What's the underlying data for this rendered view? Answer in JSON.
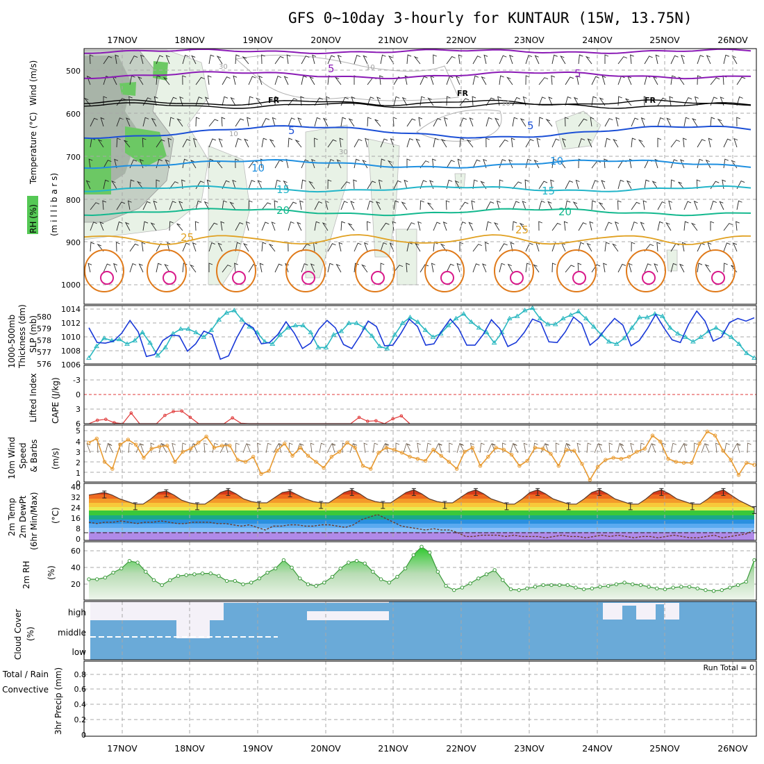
{
  "title": "GFS 0~10day 3-hourly for KUNTAUR (15W, 13.75N)",
  "colors": {
    "purple": "#8a1ab5",
    "black": "#000000",
    "blue": "#1b4fd6",
    "lightblue": "#1e8fe0",
    "cyan": "#22b5c9",
    "teal": "#13b88e",
    "gold": "#e0a020",
    "orange": "#e07a1a",
    "magenta": "#d81a8a",
    "slp": "#1838d8",
    "thick": "#2ab8c0",
    "li": "#e03a3a",
    "wind10": "#e89a30",
    "rh": "#3a9a3a"
  },
  "dates": [
    "17NOV",
    "18NOV",
    "19NOV",
    "20NOV",
    "21NOV",
    "22NOV",
    "23NOV",
    "24NOV",
    "25NOV",
    "26NOV"
  ],
  "run_total": "Run Total = 0",
  "panels": {
    "upper": {
      "labels": [
        "Wind (m/s)",
        "Temperature (°C)",
        "RH (%)",
        "(m i l l i b a r s)"
      ],
      "ticks": [
        "500",
        "600",
        "700",
        "800",
        "900",
        "1000"
      ],
      "contour_labels": {
        "t5a": "5",
        "t5b": "5",
        "fr1": "FR",
        "fr2": "FR",
        "fr3": "FR",
        "t5c": "5",
        "t5d": "5",
        "t10a": "10",
        "t10b": "10",
        "t15a": "15",
        "t15b": "15",
        "t20a": "20",
        "t20b": "20",
        "t25a": "25",
        "t25b": "25",
        "rh30a": "30",
        "rh10a": "10",
        "rh30b": "30",
        "rh10b": "10",
        "rh10c": "10"
      }
    },
    "slp": {
      "labels": [
        "1000-500mb",
        "Thickness (dm)",
        "SLP (mb)"
      ],
      "left_ticks": [
        "580",
        "579",
        "578",
        "577",
        "576"
      ],
      "right_ticks": [
        "1014",
        "1012",
        "1010",
        "1008",
        "1006"
      ]
    },
    "li": {
      "labels": [
        "Lifted Index",
        "CAPE (J/kg)"
      ],
      "ticks": [
        "-3",
        "0",
        "3",
        "6"
      ]
    },
    "wind": {
      "labels": [
        "10m Wind",
        "Speed",
        "& Barbs",
        "(m/s)"
      ],
      "ticks": [
        "5",
        "4",
        "3",
        "2",
        "1",
        "0"
      ]
    },
    "temp": {
      "labels": [
        "2m Temp",
        "2m DewPt",
        "(6hr Min/Max)",
        "(°C)"
      ],
      "ticks": [
        "40",
        "32",
        "24",
        "16",
        "8",
        "0"
      ]
    },
    "rh2m": {
      "labels": [
        "2m RH",
        "(%)"
      ],
      "ticks": [
        "60",
        "40",
        "20"
      ]
    },
    "cloud": {
      "labels": [
        "Cloud Cover",
        "(%)"
      ],
      "levels": [
        "high",
        "middle",
        "low"
      ]
    },
    "precip": {
      "labels": [
        "Total / Rain",
        "Convective",
        "3hr Precip (mm)"
      ],
      "ticks": [
        "0.8",
        "0.6",
        "0.4",
        "0.2",
        "0"
      ]
    }
  },
  "chart_data": [
    {
      "type": "line",
      "title": "SLP (mb)",
      "ylim": [
        1006,
        1014
      ],
      "series": [
        {
          "name": "SLP (mb)",
          "values": [
            1011.2,
            1009.0,
            1008.9,
            1009.2,
            1010.4,
            1012.3,
            1010.6,
            1006.9,
            1007.2,
            1009.3,
            1010.1,
            1010.0,
            1007.7,
            1008.8,
            1010.7,
            1010.2,
            1006.5,
            1007.0,
            1009.7,
            1011.9,
            1011.2,
            1008.8,
            1009.0,
            1010.2,
            1012.1,
            1010.4,
            1008.1,
            1008.9,
            1011.0,
            1012.3,
            1011.2,
            1008.7,
            1008.1,
            1010.0,
            1012.2,
            1011.4,
            1008.5,
            1008.6,
            1010.4,
            1012.5,
            1011.4,
            1008.6,
            1008.8,
            1010.8,
            1012.5,
            1011.1,
            1008.6,
            1008.6,
            1010.2,
            1012.4,
            1011.1,
            1008.4,
            1009.0,
            1010.5,
            1012.5,
            1012.0,
            1009.1,
            1009.0,
            1010.6,
            1012.8,
            1011.8,
            1008.6,
            1009.6,
            1011.2,
            1012.6,
            1011.6,
            1008.5,
            1009.3,
            1011.1,
            1013.2,
            1011.2,
            1009.4,
            1009.0,
            1011.7,
            1013.7,
            1012.2,
            1009.2,
            1009.8,
            1012.0,
            1012.6,
            1012.2,
            1012.7
          ]
        }
      ]
    },
    {
      "type": "line",
      "title": "1000-500mb Thickness (dm)",
      "ylim": [
        576,
        580.5
      ],
      "series": [
        {
          "name": "1000-500mb Thickness (dm)",
          "values": [
            576.4,
            577.4,
            578.1,
            577.9,
            578.0,
            577.6,
            577.9,
            578.6,
            577.7,
            576.6,
            577.3,
            578.5,
            578.9,
            578.9,
            578.6,
            578.2,
            578.8,
            579.7,
            580.3,
            580.5,
            579.7,
            579.1,
            578.6,
            577.8,
            577.6,
            578.4,
            579.0,
            579.2,
            579.2,
            578.6,
            577.3,
            577.3,
            578.4,
            578.7,
            579.4,
            579.4,
            579.0,
            578.3,
            577.4,
            577.2,
            578.4,
            579.4,
            579.9,
            579.5,
            578.8,
            578.2,
            578.5,
            579.2,
            579.8,
            580.2,
            579.5,
            579.0,
            578.6,
            577.7,
            578.6,
            579.8,
            580.0,
            580.5,
            580.7,
            579.8,
            579.3,
            579.3,
            579.8,
            580.1,
            580.4,
            579.8,
            579.1,
            578.4,
            577.8,
            577.6,
            578.1,
            579.0,
            579.9,
            579.9,
            580.2,
            580.0,
            579.0,
            578.5,
            578.2,
            577.8,
            578.2,
            578.7,
            579.0,
            578.6,
            578.2,
            577.6,
            576.8,
            576.4
          ]
        }
      ]
    },
    {
      "type": "line",
      "title": "10m Wind Speed (m/s)",
      "ylim": [
        0,
        5.5
      ],
      "series": [
        {
          "name": "10m Wind Speed",
          "values": [
            3.9,
            4.3,
            2.0,
            1.3,
            3.7,
            4.2,
            3.7,
            2.4,
            3.3,
            3.5,
            3.6,
            2.0,
            3.0,
            3.3,
            3.9,
            4.5,
            3.4,
            3.6,
            3.6,
            2.2,
            2.0,
            2.5,
            0.8,
            1.1,
            3.1,
            3.8,
            2.6,
            3.4,
            2.6,
            2.0,
            1.4,
            2.5,
            3.0,
            3.9,
            3.4,
            1.6,
            1.3,
            2.9,
            3.4,
            3.2,
            2.9,
            2.5,
            2.3,
            2.1,
            3.2,
            2.6,
            2.0,
            1.3,
            3.0,
            3.4,
            1.6,
            2.5,
            3.4,
            3.2,
            2.7,
            1.6,
            2.1,
            3.4,
            3.3,
            2.8,
            1.6,
            3.2,
            3.1,
            1.8,
            0.2,
            1.5,
            2.2,
            2.4,
            2.3,
            2.5,
            3.0,
            3.3,
            4.6,
            4.0,
            2.3,
            2.0,
            1.9,
            1.9,
            3.8,
            5.0,
            4.6,
            3.1,
            2.2,
            0.7,
            1.9,
            1.7
          ]
        }
      ]
    },
    {
      "type": "area",
      "title": "2m RH (%)",
      "ylim": [
        0,
        70
      ],
      "series": [
        {
          "name": "2m RH",
          "values": [
            25,
            25,
            27,
            33,
            38,
            47,
            45,
            34,
            24,
            18,
            24,
            29,
            30,
            31,
            32,
            32,
            29,
            23,
            23,
            19,
            21,
            26,
            33,
            38,
            48,
            39,
            26,
            19,
            17,
            21,
            28,
            38,
            45,
            47,
            44,
            34,
            25,
            21,
            28,
            38,
            54,
            64,
            57,
            34,
            17,
            12,
            15,
            20,
            26,
            31,
            36,
            24,
            13,
            12,
            14,
            16,
            18,
            18,
            18,
            18,
            15,
            13,
            14,
            16,
            17,
            19,
            21,
            19,
            18,
            16,
            14,
            13,
            15,
            16,
            16,
            14,
            12,
            11,
            12,
            15,
            18,
            22,
            48
          ]
        }
      ]
    },
    {
      "type": "line",
      "title": "2m Temp (°C)",
      "ylim": [
        -2,
        42
      ],
      "series": [
        {
          "name": "2m Temp",
          "values": [
            33,
            34,
            35,
            33,
            30,
            28,
            26,
            26,
            30,
            35,
            36,
            33,
            29,
            27,
            26,
            26,
            30,
            35,
            37,
            34,
            30,
            28,
            27,
            27,
            31,
            35,
            36,
            33,
            30,
            28,
            27,
            27,
            31,
            35,
            37,
            34,
            30,
            28,
            27,
            27,
            31,
            35,
            37,
            34,
            30,
            28,
            27,
            27,
            31,
            35,
            37,
            34,
            30,
            28,
            26,
            26,
            30,
            35,
            37,
            34,
            30,
            28,
            26,
            26,
            30,
            35,
            37,
            34,
            30,
            28,
            26,
            26,
            30,
            35,
            37,
            34,
            30,
            28,
            26,
            26,
            30,
            35,
            37,
            33,
            29,
            26,
            23
          ]
        },
        {
          "name": "2m DewPt",
          "values": [
            12,
            11,
            12,
            12,
            13,
            12,
            11,
            12,
            12,
            13,
            12,
            11,
            11,
            12,
            12,
            12,
            11,
            11,
            10,
            9,
            10,
            8,
            6,
            9,
            9,
            10,
            10,
            9,
            9,
            10,
            10,
            9,
            8,
            10,
            14,
            16,
            18,
            15,
            12,
            9,
            8,
            7,
            6,
            7,
            6,
            6,
            4,
            1,
            1,
            2,
            2,
            2,
            1,
            2,
            1,
            1,
            1,
            0,
            1,
            2,
            1,
            1,
            0,
            1,
            2,
            1,
            2,
            1,
            0,
            1,
            1,
            0,
            1,
            2,
            1,
            0,
            0,
            1,
            2,
            0,
            1,
            2,
            3,
            6
          ]
        }
      ]
    },
    {
      "type": "line",
      "title": "Lifted Index",
      "ylim": [
        -3,
        6
      ],
      "series": [
        {
          "name": "Lifted Index",
          "values": [
            6,
            5.3,
            5.1,
            5.8,
            6,
            3.8,
            6,
            6,
            6,
            4.3,
            3.5,
            3.4,
            4.7,
            6,
            6,
            6,
            6,
            4.8,
            5.9,
            6,
            6,
            6,
            6,
            6,
            6,
            6,
            6,
            6,
            6,
            6,
            6,
            6,
            4.7,
            5.5,
            5.4,
            6,
            5.0,
            4.4,
            6
          ]
        }
      ]
    }
  ]
}
